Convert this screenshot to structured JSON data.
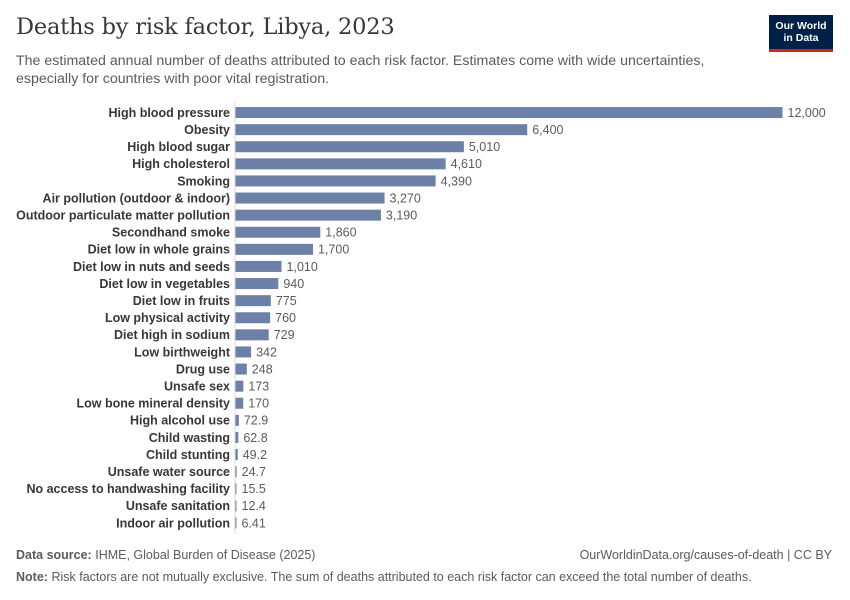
{
  "header": {
    "title": "Deaths by risk factor, Libya, 2023",
    "subtitle": "The estimated annual number of deaths attributed to each risk factor. Estimates come with wide uncertainties, especially for countries with poor vital registration.",
    "logo_line1": "Our World",
    "logo_line2": "in Data"
  },
  "footer": {
    "source_label": "Data source:",
    "source_text": "IHME, Global Burden of Disease (2025)",
    "url_text": "OurWorldinData.org/causes-of-death | CC BY",
    "note_label": "Note:",
    "note_text": "Risk factors are not mutually exclusive. The sum of deaths attributed to each risk factor can exceed the total number of deaths."
  },
  "colors": {
    "bar": "#6d80a8",
    "axis": "#d9d9d9",
    "label": "#373737",
    "value": "#5b5b5b",
    "logo_bg": "#002147",
    "logo_accent": "#ce261e"
  },
  "chart_data": {
    "type": "bar",
    "orientation": "horizontal",
    "xlim": [
      0,
      12000
    ],
    "categories": [
      "High blood pressure",
      "Obesity",
      "High blood sugar",
      "High cholesterol",
      "Smoking",
      "Air pollution (outdoor & indoor)",
      "Outdoor particulate matter pollution",
      "Secondhand smoke",
      "Diet low in whole grains",
      "Diet low in nuts and seeds",
      "Diet low in vegetables",
      "Diet low in fruits",
      "Low physical activity",
      "Diet high in sodium",
      "Low birthweight",
      "Drug use",
      "Unsafe sex",
      "Low bone mineral density",
      "High alcohol use",
      "Child wasting",
      "Child stunting",
      "Unsafe water source",
      "No access to handwashing facility",
      "Unsafe sanitation",
      "Indoor air pollution"
    ],
    "values": [
      12000,
      6400,
      5010,
      4610,
      4390,
      3270,
      3190,
      1860,
      1700,
      1010,
      940,
      775,
      760,
      729,
      342,
      248,
      173,
      170,
      72.9,
      62.8,
      49.2,
      24.7,
      15.5,
      12.4,
      6.41
    ],
    "value_labels": [
      "12,000",
      "6,400",
      "5,010",
      "4,610",
      "4,390",
      "3,270",
      "3,190",
      "1,860",
      "1,700",
      "1,010",
      "940",
      "775",
      "760",
      "729",
      "342",
      "248",
      "173",
      "170",
      "72.9",
      "62.8",
      "49.2",
      "24.7",
      "15.5",
      "12.4",
      "6.41"
    ]
  }
}
